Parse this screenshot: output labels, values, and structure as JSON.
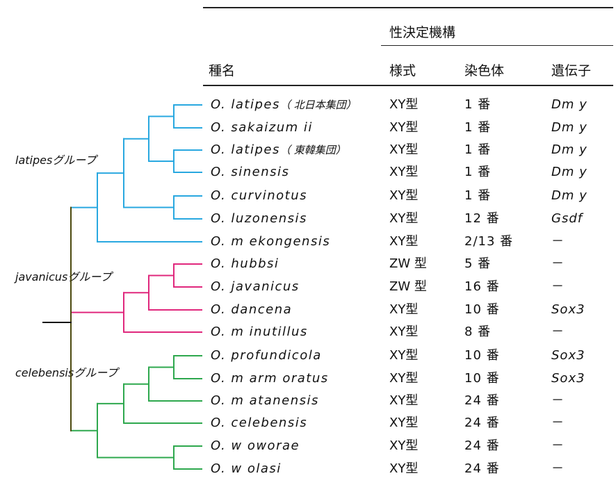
{
  "table": {
    "group_header": "性決定機構",
    "col_species": "種名",
    "col_style": "様式",
    "col_chromosome": "染色体",
    "col_gene": "遺伝子"
  },
  "groups": [
    {
      "name": "latipesグループ",
      "color": "#29a8e0"
    },
    {
      "name": "javanicusグループ",
      "color": "#e0287d"
    },
    {
      "name": "celebensisグループ",
      "color": "#2ea84e"
    }
  ],
  "root_color": "#4d4a0f",
  "rows": [
    {
      "species": "O. latipes",
      "note": "（ 北日本集団）",
      "style": "XY型",
      "chromosome": "1 番",
      "gene": "Dm y"
    },
    {
      "species": "O. sakaizum ii",
      "note": "",
      "style": "XY型",
      "chromosome": "1 番",
      "gene": "Dm y"
    },
    {
      "species": "O. latipes",
      "note": "（ 東韓集団）",
      "style": "XY型",
      "chromosome": "1 番",
      "gene": "Dm y"
    },
    {
      "species": "O. sinensis",
      "note": "",
      "style": "XY型",
      "chromosome": "1 番",
      "gene": "Dm y"
    },
    {
      "species": "O. curvinotus",
      "note": "",
      "style": "XY型",
      "chromosome": "1 番",
      "gene": "Dm y"
    },
    {
      "species": "O. luzonensis",
      "note": "",
      "style": "XY型",
      "chromosome": "12 番",
      "gene": "Gsdf"
    },
    {
      "species": "O. m ekongensis",
      "note": "",
      "style": "XY型",
      "chromosome": "2/13 番",
      "gene": "－"
    },
    {
      "species": "O. hubbsi",
      "note": "",
      "style": "ZW 型",
      "chromosome": "5 番",
      "gene": "－"
    },
    {
      "species": "O. javanicus",
      "note": "",
      "style": "ZW 型",
      "chromosome": "16 番",
      "gene": "－"
    },
    {
      "species": "O. dancena",
      "note": "",
      "style": "XY型",
      "chromosome": "10 番",
      "gene": "Sox3"
    },
    {
      "species": "O. m inutillus",
      "note": "",
      "style": "XY型",
      "chromosome": "8 番",
      "gene": "－"
    },
    {
      "species": "O. profundicola",
      "note": "",
      "style": "XY型",
      "chromosome": "10 番",
      "gene": "Sox3"
    },
    {
      "species": "O. m arm oratus",
      "note": "",
      "style": "XY型",
      "chromosome": "10 番",
      "gene": "Sox3"
    },
    {
      "species": "O. m atanensis",
      "note": "",
      "style": "XY型",
      "chromosome": "24 番",
      "gene": "－"
    },
    {
      "species": "O. celebensis",
      "note": "",
      "style": "XY型",
      "chromosome": "24 番",
      "gene": "－"
    },
    {
      "species": "O. w oworae",
      "note": "",
      "style": "XY型",
      "chromosome": "24 番",
      "gene": "－"
    },
    {
      "species": "O. w olasi",
      "note": "",
      "style": "XY型",
      "chromosome": "24 番",
      "gene": "－"
    }
  ]
}
